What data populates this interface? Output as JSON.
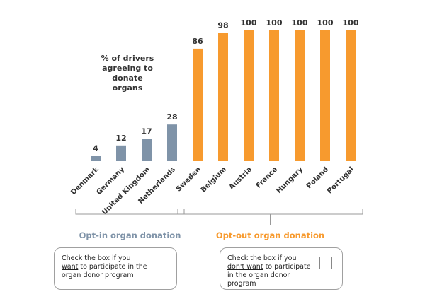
{
  "chart_data": {
    "type": "bar",
    "annotation": [
      "% of drivers",
      "agreeing to",
      "donate",
      "organs"
    ],
    "series": [
      {
        "name": "Opt-in organ donation",
        "color": "#7f93a8",
        "categories": [
          "Denmark",
          "Germany",
          "United Kingdom",
          "Netherlands"
        ],
        "values": [
          4,
          12,
          17,
          28
        ]
      },
      {
        "name": "Opt-out organ donation",
        "color": "#f79a2e",
        "categories": [
          "Sweden",
          "Belgium",
          "Austria",
          "France",
          "Hungary",
          "Poland",
          "Portugal"
        ],
        "values": [
          86,
          98,
          100,
          100,
          100,
          100,
          100
        ]
      }
    ]
  },
  "boxes": [
    {
      "before": "Check the box if you ",
      "underlined": "want",
      "after": " to participate in the organ donor program"
    },
    {
      "before": "Check the box if you ",
      "underlined": "don't want",
      "after": " to participate in the organ donor program"
    }
  ]
}
